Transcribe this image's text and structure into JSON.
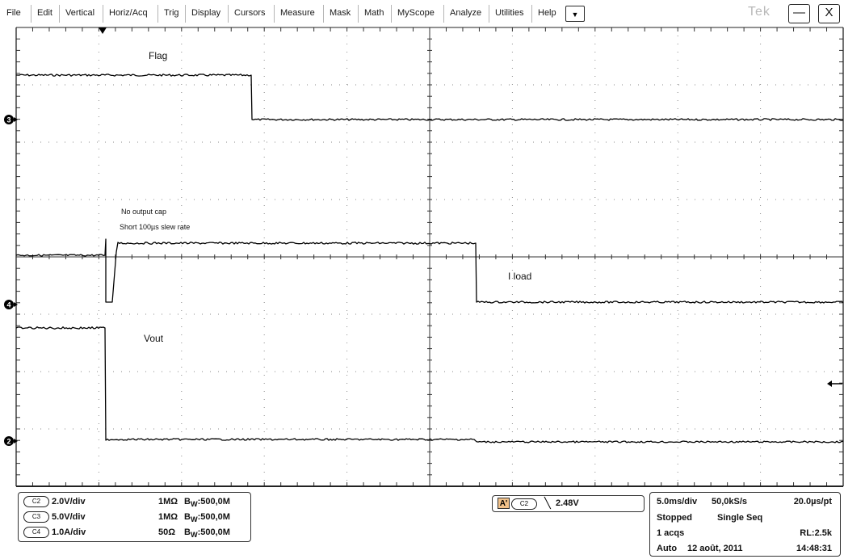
{
  "menu": {
    "items": [
      "File",
      "Edit",
      "Vertical",
      "Horiz/Acq",
      "Trig",
      "Display",
      "Cursors",
      "Measure",
      "Mask",
      "Math",
      "MyScope",
      "Analyze",
      "Utilities",
      "Help"
    ],
    "dropdown_glyph": "▼"
  },
  "brand": "Tek",
  "window": {
    "minimize_glyph": "—",
    "close_glyph": "X"
  },
  "annotations": {
    "flag": "Flag",
    "note_line1": "No output cap",
    "note_line2": "Short 100µs slew rate",
    "iload": "I load",
    "vout": "Vout"
  },
  "markers": {
    "ch3": "3",
    "ch4": "4",
    "ch2": "2"
  },
  "channels": [
    {
      "badge": "C2",
      "scale": "2.0V/div",
      "coupling": "1MΩ",
      "bw_prefix": "B",
      "bw_sub": "W",
      "bw_value": ":500,0M"
    },
    {
      "badge": "C3",
      "scale": "5.0V/div",
      "coupling": "1MΩ",
      "bw_prefix": "B",
      "bw_sub": "W",
      "bw_value": ":500,0M"
    },
    {
      "badge": "C4",
      "scale": "1.0A/div",
      "coupling": "50Ω",
      "bw_prefix": "B",
      "bw_sub": "W",
      "bw_value": ":500,0M"
    }
  ],
  "trigger": {
    "label": "A'",
    "source": "C2",
    "slope_glyph": "╲",
    "level": "2.48V"
  },
  "acquisition": {
    "timebase": "5.0ms/div",
    "sample_rate": "50,0kS/s",
    "resolution": "20.0µs/pt",
    "state": "Stopped",
    "mode": "Single Seq",
    "acqs": "1 acqs",
    "record_length": "RL:2.5k",
    "trigger_mode": "Auto",
    "date": "12 août, 2011",
    "time": "14:48:31"
  },
  "colors": {
    "trace": "#000000",
    "grid": "#7a7a7a",
    "frame": "#222222",
    "trigger_badge": "#f2c28a"
  }
}
